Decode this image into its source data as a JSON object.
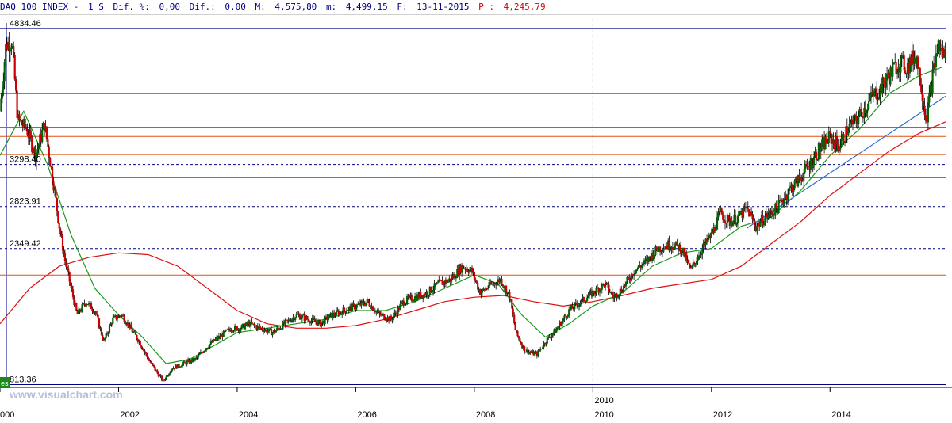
{
  "header": {
    "name": "DAQ 100 INDEX -",
    "period": "1 S",
    "dif_pct_label": "Dif. %:",
    "dif_pct_value": "0,00",
    "dif_label": "Dif.:",
    "dif_value": "0,00",
    "max_label": "M:",
    "max_value": "4,575,80",
    "min_label": "m:",
    "min_value": "4,499,15",
    "date_label": "F:",
    "date_value": "13-11-2015",
    "price_label": "P :",
    "price_value": "4,245,79"
  },
  "watermark": "www.visualchart.com",
  "corner_tag": "es",
  "colors": {
    "bull": "#006400",
    "bear": "#cc0000",
    "ma_fast": "#1a9a1a",
    "ma_slow": "#dd1111",
    "trend": "#3070d0",
    "line_navy": "#000080",
    "line_orange": "#e05010",
    "line_green": "#008000"
  },
  "chart_data": {
    "type": "candlestick",
    "title": "",
    "xlabel": "",
    "ylabel": "",
    "x_ticks": [
      "000",
      "2002",
      "2004",
      "2006",
      "2008",
      "2010",
      "2012",
      "2014"
    ],
    "x_range": [
      2000.0,
      2015.95
    ],
    "y_range": [
      800,
      4950
    ],
    "level_labels": [
      "4834.46",
      "3298.40",
      "2823.91",
      "2349.42",
      "813.36"
    ],
    "horizontal_levels": [
      {
        "value": 4834.46,
        "label": "4834.46",
        "style": "solid",
        "color": "navy"
      },
      {
        "value": 4100,
        "label": "",
        "style": "solid",
        "color": "navy"
      },
      {
        "value": 3720,
        "label": "",
        "style": "solid",
        "color": "orange"
      },
      {
        "value": 3615,
        "label": "",
        "style": "solid",
        "color": "orange"
      },
      {
        "value": 3410,
        "label": "",
        "style": "solid",
        "color": "orange"
      },
      {
        "value": 3298.4,
        "label": "3298.40",
        "style": "dashed",
        "color": "navy"
      },
      {
        "value": 3150,
        "label": "",
        "style": "solid",
        "color": "green"
      },
      {
        "value": 2823.91,
        "label": "2823.91",
        "style": "dashed",
        "color": "navy"
      },
      {
        "value": 2349.42,
        "label": "2349.42",
        "style": "dashed",
        "color": "navy"
      },
      {
        "value": 2050,
        "label": "",
        "style": "solid",
        "color": "orange"
      },
      {
        "value": 813.36,
        "label": "813.36",
        "style": "solid",
        "color": "navy"
      }
    ],
    "vertical_markers": [
      2010.0
    ],
    "price_series": [
      [
        2000.0,
        3900
      ],
      [
        2000.1,
        4650
      ],
      [
        2000.2,
        4700
      ],
      [
        2000.3,
        3800
      ],
      [
        2000.45,
        3700
      ],
      [
        2000.6,
        3400
      ],
      [
        2000.75,
        3750
      ],
      [
        2000.9,
        3100
      ],
      [
        2001.0,
        2600
      ],
      [
        2001.1,
        2200
      ],
      [
        2001.2,
        1900
      ],
      [
        2001.3,
        1600
      ],
      [
        2001.45,
        1750
      ],
      [
        2001.6,
        1650
      ],
      [
        2001.75,
        1300
      ],
      [
        2001.9,
        1550
      ],
      [
        2002.05,
        1600
      ],
      [
        2002.2,
        1450
      ],
      [
        2002.35,
        1300
      ],
      [
        2002.5,
        1100
      ],
      [
        2002.6,
        1000
      ],
      [
        2002.75,
        850
      ],
      [
        2002.9,
        1000
      ],
      [
        2003.1,
        1050
      ],
      [
        2003.3,
        1100
      ],
      [
        2003.5,
        1250
      ],
      [
        2003.7,
        1350
      ],
      [
        2003.9,
        1450
      ],
      [
        2004.05,
        1450
      ],
      [
        2004.2,
        1500
      ],
      [
        2004.4,
        1450
      ],
      [
        2004.6,
        1400
      ],
      [
        2004.8,
        1500
      ],
      [
        2005.0,
        1600
      ],
      [
        2005.2,
        1550
      ],
      [
        2005.4,
        1500
      ],
      [
        2005.6,
        1600
      ],
      [
        2005.8,
        1650
      ],
      [
        2006.0,
        1700
      ],
      [
        2006.2,
        1750
      ],
      [
        2006.4,
        1600
      ],
      [
        2006.6,
        1550
      ],
      [
        2006.8,
        1750
      ],
      [
        2007.0,
        1800
      ],
      [
        2007.2,
        1850
      ],
      [
        2007.4,
        1950
      ],
      [
        2007.6,
        2000
      ],
      [
        2007.8,
        2150
      ],
      [
        2007.95,
        2100
      ],
      [
        2008.1,
        1850
      ],
      [
        2008.3,
        1950
      ],
      [
        2008.45,
        2000
      ],
      [
        2008.6,
        1800
      ],
      [
        2008.7,
        1400
      ],
      [
        2008.85,
        1200
      ],
      [
        2009.05,
        1150
      ],
      [
        2009.2,
        1300
      ],
      [
        2009.4,
        1450
      ],
      [
        2009.6,
        1650
      ],
      [
        2009.8,
        1750
      ],
      [
        2010.0,
        1850
      ],
      [
        2010.2,
        1950
      ],
      [
        2010.35,
        1800
      ],
      [
        2010.5,
        1900
      ],
      [
        2010.7,
        2100
      ],
      [
        2010.9,
        2200
      ],
      [
        2011.1,
        2350
      ],
      [
        2011.3,
        2400
      ],
      [
        2011.5,
        2350
      ],
      [
        2011.65,
        2100
      ],
      [
        2011.8,
        2300
      ],
      [
        2012.0,
        2500
      ],
      [
        2012.15,
        2750
      ],
      [
        2012.3,
        2650
      ],
      [
        2012.45,
        2700
      ],
      [
        2012.6,
        2800
      ],
      [
        2012.75,
        2600
      ],
      [
        2012.9,
        2700
      ],
      [
        2013.1,
        2800
      ],
      [
        2013.3,
        3000
      ],
      [
        2013.5,
        3150
      ],
      [
        2013.7,
        3350
      ],
      [
        2013.85,
        3500
      ],
      [
        2014.0,
        3600
      ],
      [
        2014.15,
        3500
      ],
      [
        2014.3,
        3700
      ],
      [
        2014.5,
        3850
      ],
      [
        2014.7,
        4050
      ],
      [
        2014.85,
        4150
      ],
      [
        2015.0,
        4300
      ],
      [
        2015.15,
        4450
      ],
      [
        2015.3,
        4400
      ],
      [
        2015.45,
        4550
      ],
      [
        2015.55,
        4150
      ],
      [
        2015.62,
        3800
      ],
      [
        2015.72,
        4250
      ],
      [
        2015.82,
        4650
      ],
      [
        2015.9,
        4550
      ]
    ],
    "ma_fast": [
      [
        2000.0,
        3400
      ],
      [
        2000.4,
        3900
      ],
      [
        2000.8,
        3300
      ],
      [
        2001.2,
        2500
      ],
      [
        2001.6,
        1900
      ],
      [
        2002.0,
        1600
      ],
      [
        2002.4,
        1350
      ],
      [
        2002.8,
        1050
      ],
      [
        2003.2,
        1100
      ],
      [
        2003.6,
        1250
      ],
      [
        2004.0,
        1400
      ],
      [
        2004.5,
        1450
      ],
      [
        2005.0,
        1500
      ],
      [
        2005.5,
        1550
      ],
      [
        2006.0,
        1650
      ],
      [
        2006.5,
        1650
      ],
      [
        2007.0,
        1750
      ],
      [
        2007.5,
        1900
      ],
      [
        2008.0,
        2050
      ],
      [
        2008.4,
        1950
      ],
      [
        2008.8,
        1600
      ],
      [
        2009.2,
        1350
      ],
      [
        2009.6,
        1500
      ],
      [
        2010.0,
        1700
      ],
      [
        2010.5,
        1850
      ],
      [
        2011.0,
        2150
      ],
      [
        2011.5,
        2300
      ],
      [
        2012.0,
        2350
      ],
      [
        2012.5,
        2600
      ],
      [
        2013.0,
        2700
      ],
      [
        2013.5,
        3000
      ],
      [
        2014.0,
        3400
      ],
      [
        2014.5,
        3700
      ],
      [
        2015.0,
        4100
      ],
      [
        2015.5,
        4300
      ],
      [
        2015.9,
        4400
      ]
    ],
    "ma_slow": [
      [
        2000.0,
        1500
      ],
      [
        2000.5,
        1900
      ],
      [
        2001.0,
        2150
      ],
      [
        2001.5,
        2250
      ],
      [
        2002.0,
        2300
      ],
      [
        2002.5,
        2280
      ],
      [
        2003.0,
        2150
      ],
      [
        2003.5,
        1900
      ],
      [
        2004.0,
        1650
      ],
      [
        2004.5,
        1500
      ],
      [
        2005.0,
        1450
      ],
      [
        2005.5,
        1450
      ],
      [
        2006.0,
        1480
      ],
      [
        2006.5,
        1550
      ],
      [
        2007.0,
        1650
      ],
      [
        2007.5,
        1750
      ],
      [
        2008.0,
        1800
      ],
      [
        2008.5,
        1820
      ],
      [
        2009.0,
        1750
      ],
      [
        2009.5,
        1700
      ],
      [
        2010.0,
        1750
      ],
      [
        2010.5,
        1820
      ],
      [
        2011.0,
        1900
      ],
      [
        2011.5,
        1950
      ],
      [
        2012.0,
        2000
      ],
      [
        2012.5,
        2150
      ],
      [
        2013.0,
        2400
      ],
      [
        2013.5,
        2650
      ],
      [
        2014.0,
        2950
      ],
      [
        2014.5,
        3200
      ],
      [
        2015.0,
        3450
      ],
      [
        2015.5,
        3650
      ],
      [
        2015.95,
        3780
      ]
    ],
    "trend_line": [
      [
        2012.6,
        2580
      ],
      [
        2015.95,
        4070
      ]
    ]
  }
}
